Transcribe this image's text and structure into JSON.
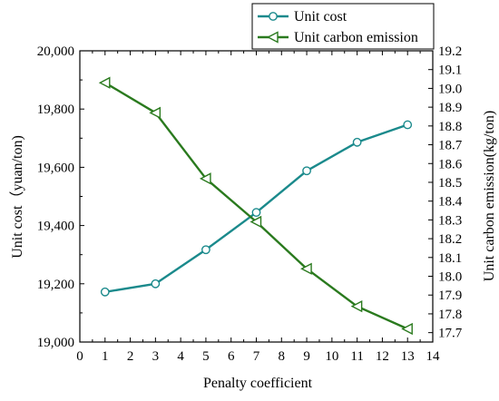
{
  "chart_data": {
    "type": "line",
    "title": "",
    "xlabel": "Penalty coefficient",
    "ylabel": "Unit cost（yuan/ton)",
    "y2label": "Unit carbon emission(kg/ton)",
    "xlim": [
      0,
      14
    ],
    "ylim": [
      19000,
      20000
    ],
    "y2lim": [
      17.65,
      19.2
    ],
    "x_ticks": [
      "0",
      "1",
      "2",
      "3",
      "4",
      "5",
      "6",
      "7",
      "8",
      "9",
      "10",
      "11",
      "12",
      "13",
      "14"
    ],
    "y_ticks": [
      "19,000",
      "19,200",
      "19,400",
      "19,600",
      "19,800",
      "20,000"
    ],
    "y2_ticks": [
      "17.7",
      "17.8",
      "17.9",
      "18.0",
      "18.1",
      "18.2",
      "18.3",
      "18.4",
      "18.5",
      "18.6",
      "18.7",
      "18.8",
      "18.9",
      "19.0",
      "19.1",
      "19.2"
    ],
    "grid": false,
    "legend_position": "top-right",
    "series": [
      {
        "name": "Unit cost",
        "axis": "left",
        "marker": "circle",
        "color": "#1b8a8c",
        "x": [
          1,
          3,
          5,
          7,
          9,
          11,
          13
        ],
        "values": [
          19172,
          19200,
          19317,
          19445,
          19588,
          19686,
          19746
        ]
      },
      {
        "name": "Unit carbon emission",
        "axis": "right",
        "marker": "triangle-left",
        "color": "#2a7a1e",
        "x": [
          1,
          3,
          5,
          7,
          9,
          11,
          13
        ],
        "values": [
          19.03,
          18.87,
          18.52,
          18.29,
          18.04,
          17.84,
          17.72
        ]
      }
    ]
  }
}
